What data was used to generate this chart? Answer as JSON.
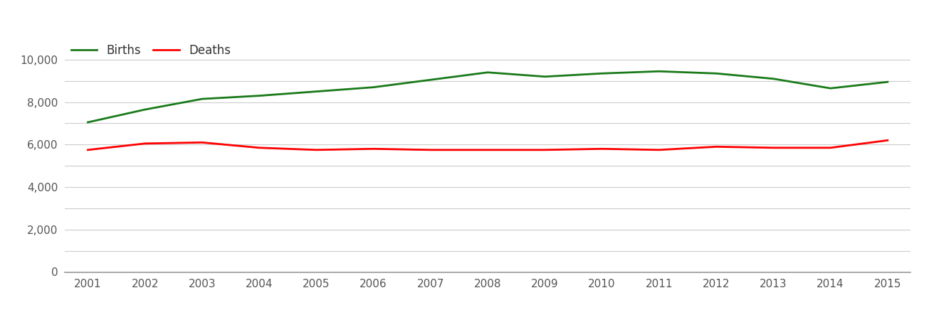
{
  "years": [
    2001,
    2002,
    2003,
    2004,
    2005,
    2006,
    2007,
    2008,
    2009,
    2010,
    2011,
    2012,
    2013,
    2014,
    2015
  ],
  "births": [
    7050,
    7650,
    8150,
    8300,
    8500,
    8700,
    9050,
    9400,
    9200,
    9350,
    9450,
    9350,
    9100,
    8650,
    8950
  ],
  "deaths": [
    5750,
    6050,
    6100,
    5850,
    5750,
    5800,
    5750,
    5750,
    5750,
    5800,
    5750,
    5900,
    5850,
    5850,
    6200
  ],
  "births_color": "#1a7a1a",
  "deaths_color": "#ff0000",
  "line_width": 2.0,
  "ylim": [
    0,
    11000
  ],
  "yticks": [
    0,
    2000,
    4000,
    6000,
    8000,
    10000
  ],
  "minor_yticks": [
    1000,
    3000,
    5000,
    7000,
    9000
  ],
  "xlim": [
    2001,
    2015
  ],
  "grid_color": "#cccccc",
  "background_color": "#ffffff",
  "legend_births": "Births",
  "legend_deaths": "Deaths",
  "tick_fontsize": 11,
  "legend_fontsize": 12,
  "tick_color": "#555555"
}
